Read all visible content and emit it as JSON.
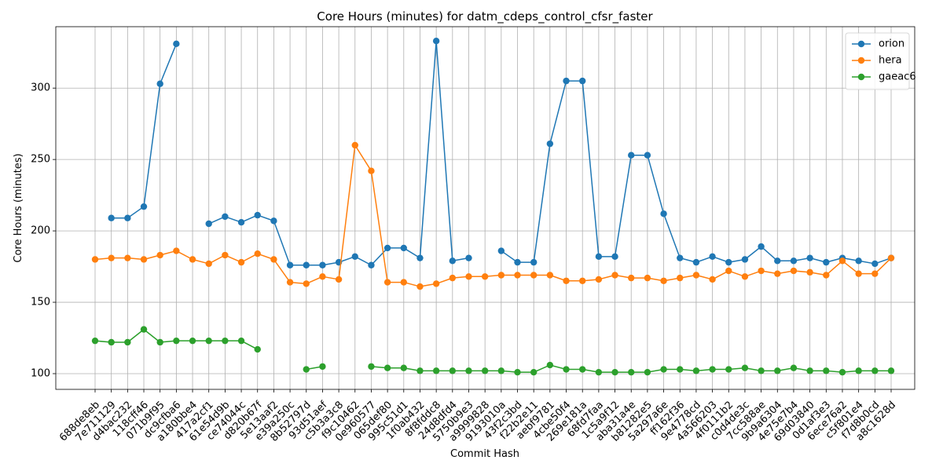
{
  "chart_data": {
    "type": "line",
    "title": "Core Hours (minutes) for datm_cdeps_control_cfsr_faster",
    "xlabel": "Commit Hash",
    "ylabel": "Core Hours (minutes)",
    "ylim": [
      89,
      343
    ],
    "yticks": [
      100,
      150,
      200,
      250,
      300
    ],
    "grid": true,
    "legend_position": "top-right",
    "categories": [
      "688de8eb",
      "7e711129",
      "d4bac232",
      "118cff46",
      "071b9f95",
      "dc9cfba6",
      "a180bbe4",
      "417a2cf1",
      "61e54d9b",
      "ce74044c",
      "d820b67f",
      "5e13aaf2",
      "e39a250c",
      "8b52797d",
      "93d51aef",
      "c5b3a3c8",
      "f9c10462",
      "0e960577",
      "065def80",
      "995c51d1",
      "1f0ab432",
      "8f8fddc8",
      "24d8dfd4",
      "5750b9e3",
      "a9999828",
      "9193010a",
      "43f2c3bd",
      "f22b2e11",
      "aebf9781",
      "4cbe50f4",
      "269e181a",
      "68fd7faa",
      "1c5a9f12",
      "aba31a4e",
      "b81282e5",
      "5a297a6e",
      "ff162f36",
      "9e4778cd",
      "4a566203",
      "4f0111b2",
      "c0d4de3c",
      "7cc588ae",
      "9b9a6304",
      "4e75e7b4",
      "69d03840",
      "0d1af3e3",
      "6ece76a2",
      "c5f801e4",
      "f7d8b0cd",
      "a8c1628d"
    ],
    "series": [
      {
        "name": "orion",
        "color": "#1f77b4",
        "values": [
          null,
          209,
          209,
          217,
          303,
          331,
          null,
          205,
          210,
          206,
          211,
          207,
          176,
          176,
          176,
          178,
          182,
          176,
          188,
          188,
          181,
          333,
          179,
          181,
          null,
          186,
          178,
          178,
          261,
          305,
          305,
          182,
          182,
          253,
          253,
          212,
          181,
          178,
          182,
          178,
          180,
          189,
          179,
          179,
          181,
          178,
          181,
          179,
          177,
          181
        ]
      },
      {
        "name": "hera",
        "color": "#ff7f0e",
        "values": [
          180,
          181,
          181,
          180,
          183,
          186,
          180,
          177,
          183,
          178,
          184,
          180,
          164,
          163,
          168,
          166,
          260,
          242,
          164,
          164,
          161,
          163,
          167,
          168,
          168,
          169,
          169,
          169,
          169,
          165,
          165,
          166,
          169,
          167,
          167,
          165,
          167,
          169,
          166,
          172,
          168,
          172,
          170,
          172,
          171,
          169,
          179,
          170,
          170,
          181
        ]
      },
      {
        "name": "gaeac6",
        "color": "#2ca02c",
        "values": [
          123,
          122,
          122,
          131,
          122,
          123,
          123,
          123,
          123,
          123,
          117,
          null,
          null,
          103,
          105,
          null,
          null,
          105,
          104,
          104,
          102,
          102,
          102,
          102,
          102,
          102,
          101,
          101,
          106,
          103,
          103,
          101,
          101,
          101,
          101,
          103,
          103,
          102,
          103,
          103,
          104,
          102,
          102,
          104,
          102,
          102,
          101,
          102,
          102,
          102
        ]
      }
    ]
  }
}
